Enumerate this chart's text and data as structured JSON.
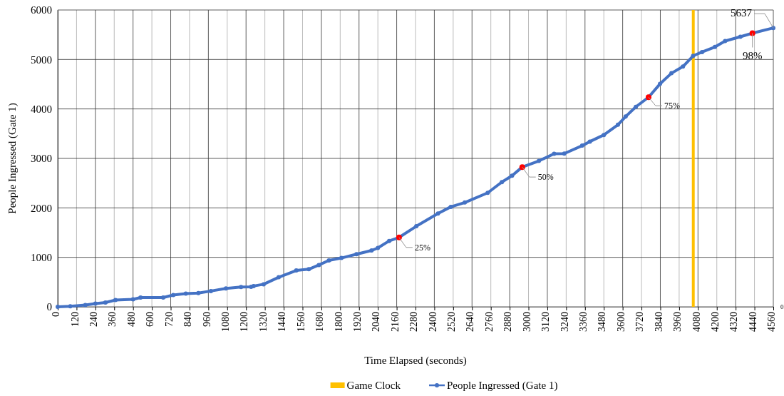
{
  "chart_data": {
    "type": "line",
    "xlabel": "Time Elapsed (seconds)",
    "ylabel": "People Ingressed (Gate 1)",
    "xlim": [
      0,
      4560
    ],
    "xticks": [
      0,
      120,
      240,
      360,
      480,
      600,
      720,
      840,
      960,
      1080,
      1200,
      1320,
      1440,
      1560,
      1680,
      1800,
      1920,
      2040,
      2160,
      2280,
      2400,
      2520,
      2640,
      2760,
      2880,
      3000,
      3120,
      3240,
      3360,
      3480,
      3600,
      3720,
      3840,
      3960,
      4080,
      4200,
      4320,
      4440,
      4560
    ],
    "ylim": [
      0,
      6000
    ],
    "yticks": [
      0,
      1000,
      2000,
      3000,
      4000,
      5000,
      6000
    ],
    "grid": true,
    "legend": "bottom",
    "marker": "circle",
    "line_style": "solid",
    "series": [
      {
        "name": "People Ingressed (Gate 1)",
        "color": "#4472c4",
        "x": [
          0,
          80,
          176,
          240,
          304,
          368,
          480,
          528,
          672,
          736,
          816,
          896,
          976,
          1072,
          1168,
          1232,
          1248,
          1312,
          1408,
          1520,
          1600,
          1664,
          1728,
          1808,
          1904,
          2000,
          2040,
          2112,
          2175,
          2285,
          2423,
          2505,
          2594,
          2740,
          2830,
          2895,
          2960,
          3066,
          3163,
          3228,
          3342,
          3391,
          3480,
          3570,
          3619,
          3684,
          3765,
          3838,
          3911,
          3984,
          4049,
          4106,
          4188,
          4253,
          4350,
          4427,
          4560
        ],
        "values": [
          0,
          10,
          35,
          66,
          86,
          137,
          152,
          187,
          187,
          238,
          268,
          278,
          319,
          370,
          400,
          405,
          420,
          456,
          597,
          734,
          760,
          845,
          937,
          987,
          1063,
          1139,
          1190,
          1332,
          1402,
          1629,
          1887,
          2021,
          2108,
          2304,
          2521,
          2650,
          2825,
          2949,
          3093,
          3098,
          3258,
          3340,
          3474,
          3681,
          3846,
          4042,
          4237,
          4506,
          4722,
          4856,
          5073,
          5150,
          5253,
          5372,
          5459,
          5531,
          5637
        ]
      },
      {
        "type": "scatter",
        "color": "#ff0000",
        "x": [
          2175,
          2960,
          3765,
          4427
        ],
        "values": [
          1402,
          2825,
          4237,
          5531
        ]
      }
    ],
    "ref_lines": [
      {
        "axis": "x",
        "value": 4050,
        "label": "Game Clock",
        "color": "#ffc000"
      }
    ],
    "annotations": [
      {
        "text": "25%",
        "x": 2175,
        "y": 1402
      },
      {
        "text": "50%",
        "x": 2960,
        "y": 2825
      },
      {
        "text": "75%",
        "x": 3765,
        "y": 4237
      },
      {
        "text": "98%",
        "x": 4427,
        "y": 5531
      },
      {
        "text": "5637",
        "x": 4560,
        "y": 5637
      },
      "0"
    ]
  }
}
